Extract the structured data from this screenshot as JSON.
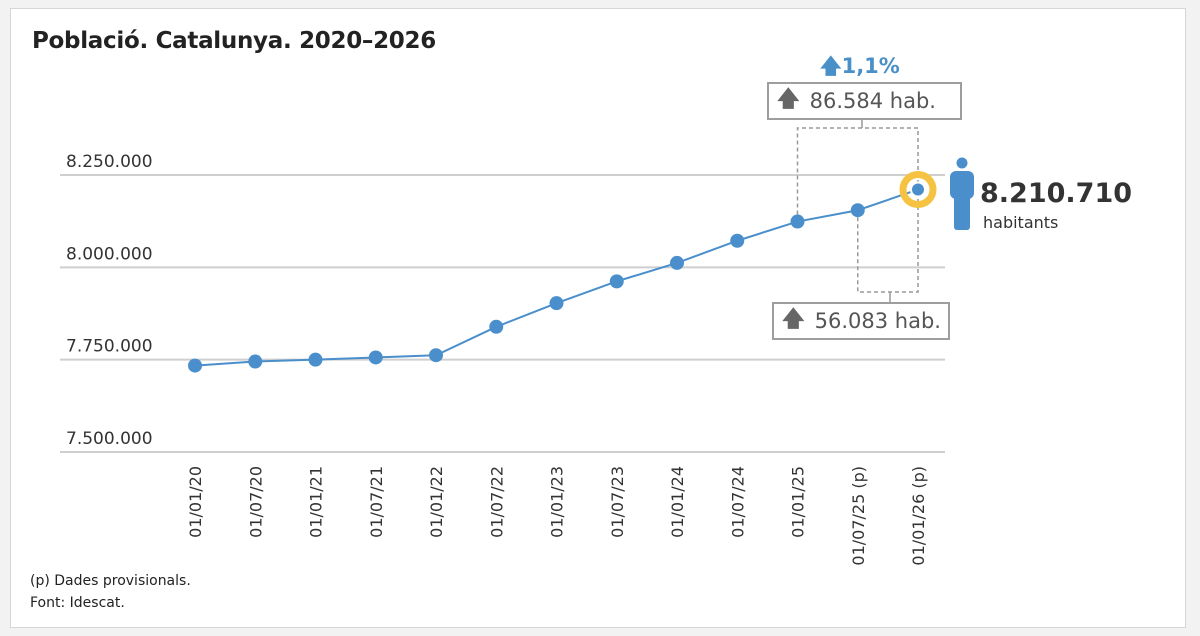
{
  "chart_data": {
    "type": "line",
    "title": "Població. Catalunya. 2020–2026",
    "categories": [
      "01/01/20",
      "01/07/20",
      "01/01/21",
      "01/07/21",
      "01/01/22",
      "01/07/22",
      "01/01/23",
      "01/07/23",
      "01/01/24",
      "01/07/24",
      "01/01/25",
      "01/07/25 (p)",
      "01/01/26 (p)"
    ],
    "values": [
      7734000,
      7745000,
      7750000,
      7756000,
      7762000,
      7839000,
      7903000,
      7962000,
      8012000,
      8072000,
      8124000,
      8154627,
      8210710
    ],
    "ylim": [
      7500000,
      8250000
    ],
    "yticks": [
      "7.500.000",
      "7.750.000",
      "8.000.000",
      "8.250.000"
    ],
    "ytick_values": [
      7500000,
      7750000,
      8000000,
      8250000
    ],
    "grid": true,
    "series_color": "#4a8fcb",
    "highlight_color": "#f5c242",
    "annotations": {
      "pct_change": "1,1%",
      "yearly_change": "86.584 hab.",
      "half_year_change": "56.083 hab.",
      "latest_value": "8.210.710",
      "latest_unit": "habitants"
    }
  },
  "notes": {
    "provisional": "(p) Dades provisionals.",
    "source": "Font: Idescat."
  }
}
